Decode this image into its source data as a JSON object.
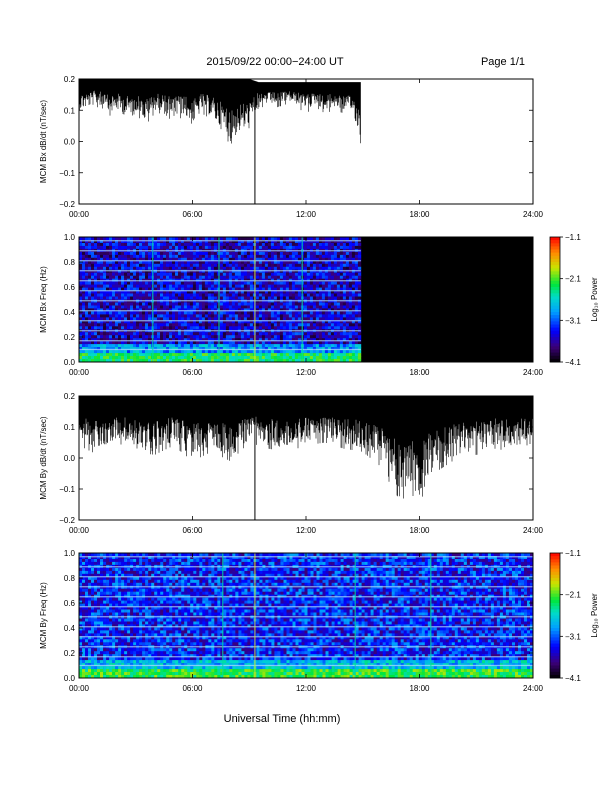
{
  "header": {
    "date_range": "2015/09/22  00:00−24:00 UT",
    "page": "Page 1/1"
  },
  "footer": {
    "xlabel": "Universal Time (hh:mm)"
  },
  "colors": {
    "background": "#ffffff",
    "trace": "#000000",
    "spectrogram_bg": "#000000"
  },
  "chart_data": [
    {
      "type": "line",
      "title": "",
      "ylabel": "MCM Bx dB/dt (nT/sec)",
      "xlabel": "",
      "x_tick_labels": [
        "00:00",
        "06:00",
        "12:00",
        "18:00",
        "24:00"
      ],
      "y_tick_labels": [
        "−0.2",
        "−0.1",
        "0.0",
        "0.1",
        "0.2"
      ],
      "xlim": [
        0,
        24
      ],
      "ylim": [
        -0.2,
        0.2
      ],
      "x_unit": "hours UT",
      "data_end_hour": 14.9,
      "series": [
        {
          "x": [
            0,
            0.5,
            1,
            1.5,
            2,
            2.5,
            3,
            3.5,
            4,
            4.5,
            5,
            5.5,
            6,
            6.5,
            7,
            7.5,
            8,
            8.5,
            9,
            9.5,
            10,
            10.5,
            11,
            11.5,
            12,
            12.5,
            13,
            13.5,
            14,
            14.5,
            14.9
          ],
          "upper": [
            0.2,
            0.2,
            0.2,
            0.2,
            0.2,
            0.2,
            0.2,
            0.2,
            0.2,
            0.2,
            0.2,
            0.2,
            0.2,
            0.2,
            0.2,
            0.2,
            0.2,
            0.2,
            0.2,
            0.19,
            0.19,
            0.19,
            0.19,
            0.19,
            0.19,
            0.19,
            0.19,
            0.19,
            0.19,
            0.19,
            0.19
          ],
          "lower": [
            0.1,
            0.11,
            0.12,
            0.09,
            0.1,
            0.08,
            0.1,
            0.06,
            0.1,
            0.1,
            0.07,
            0.09,
            0.05,
            0.1,
            0.08,
            0.04,
            0.0,
            0.03,
            0.04,
            0.12,
            0.12,
            0.12,
            0.13,
            0.12,
            0.1,
            0.12,
            0.1,
            0.11,
            0.1,
            0.09,
            0.0
          ]
        }
      ],
      "spikes": [
        {
          "x": 9.3,
          "y": -0.2
        }
      ]
    },
    {
      "type": "heatmap",
      "title": "",
      "ylabel": "MCM Bx Freq (Hz)",
      "xlabel": "",
      "x_tick_labels": [
        "00:00",
        "06:00",
        "12:00",
        "18:00",
        "24:00"
      ],
      "y_tick_labels": [
        "0.0",
        "0.2",
        "0.4",
        "0.6",
        "0.8",
        "1.0"
      ],
      "xlim": [
        0,
        24
      ],
      "ylim": [
        0,
        1.0
      ],
      "data_end_hour": 14.9,
      "colorbar": {
        "label": "Log₁₀ Power",
        "tick_labels": [
          "−1.1",
          "−2.1",
          "−3.1",
          "−4.1"
        ],
        "range": [
          -4.1,
          -1.1
        ]
      },
      "harmonic_lines_hz": [
        0.1,
        0.17,
        0.25,
        0.33,
        0.41,
        0.49,
        0.57,
        0.65,
        0.73,
        0.81,
        0.89,
        0.97
      ],
      "vertical_events_hour": [
        9.3,
        11.8,
        3.9,
        7.4
      ],
      "low_freq_power_log10": -2.3,
      "background_power_log10": -3.5
    },
    {
      "type": "line",
      "title": "",
      "ylabel": "MCM By dB/dt (nT/sec)",
      "xlabel": "",
      "x_tick_labels": [
        "00:00",
        "06:00",
        "12:00",
        "18:00",
        "24:00"
      ],
      "y_tick_labels": [
        "−0.2",
        "−0.1",
        "0.0",
        "0.1",
        "0.2"
      ],
      "xlim": [
        0,
        24
      ],
      "ylim": [
        -0.2,
        0.2
      ],
      "x_unit": "hours UT",
      "data_end_hour": 24,
      "series": [
        {
          "x": [
            0,
            1,
            2,
            3,
            4,
            5,
            6,
            7,
            8,
            9,
            10,
            11,
            12,
            13,
            14,
            15,
            16,
            16.5,
            17,
            17.5,
            18,
            18.5,
            19,
            20,
            21,
            22,
            23,
            24
          ],
          "upper": [
            0.2,
            0.2,
            0.2,
            0.2,
            0.2,
            0.2,
            0.2,
            0.2,
            0.2,
            0.2,
            0.2,
            0.2,
            0.2,
            0.2,
            0.2,
            0.2,
            0.2,
            0.2,
            0.2,
            0.2,
            0.2,
            0.2,
            0.2,
            0.2,
            0.2,
            0.2,
            0.2,
            0.2
          ],
          "lower": [
            0.05,
            0.02,
            0.06,
            0.03,
            0.02,
            0.05,
            0.0,
            0.03,
            0.0,
            0.06,
            0.04,
            0.03,
            0.05,
            0.06,
            0.04,
            0.03,
            -0.02,
            -0.08,
            -0.13,
            -0.1,
            -0.14,
            -0.06,
            -0.03,
            0.01,
            0.02,
            0.04,
            0.03,
            0.06
          ]
        }
      ],
      "spikes": [
        {
          "x": 9.3,
          "y": -0.2
        }
      ]
    },
    {
      "type": "heatmap",
      "title": "",
      "ylabel": "MCM By Freq (Hz)",
      "xlabel": "",
      "x_tick_labels": [
        "00:00",
        "06:00",
        "12:00",
        "18:00",
        "24:00"
      ],
      "y_tick_labels": [
        "0.0",
        "0.2",
        "0.4",
        "0.6",
        "0.8",
        "1.0"
      ],
      "xlim": [
        0,
        24
      ],
      "ylim": [
        0,
        1.0
      ],
      "data_end_hour": 24,
      "colorbar": {
        "label": "Log₁₀ Power",
        "tick_labels": [
          "−1.1",
          "−2.1",
          "−3.1",
          "−4.1"
        ],
        "range": [
          -4.1,
          -1.1
        ]
      },
      "harmonic_lines_hz": [
        0.1,
        0.17,
        0.25,
        0.33,
        0.41,
        0.49,
        0.57,
        0.65,
        0.73,
        0.81,
        0.89,
        0.97
      ],
      "vertical_events_hour": [
        9.3,
        18.6,
        7.6,
        14.6
      ],
      "low_freq_power_log10": -2.2,
      "background_power_log10": -3.3
    }
  ]
}
